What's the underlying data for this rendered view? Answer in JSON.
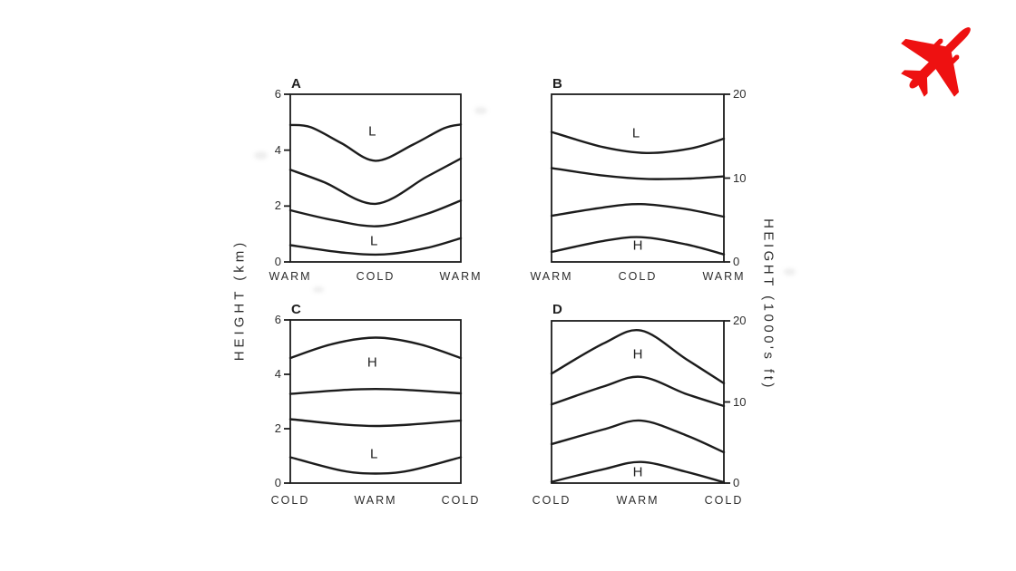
{
  "figure": {
    "left_axis_title": "HEIGHT (km)",
    "right_axis_title": "HEIGHT (1000's ft)",
    "ink_color": "#1c1c1c",
    "text_color": "#2d2d2d",
    "background": "#ffffff",
    "plane_icon": {
      "name": "airplane-icon",
      "color": "#ee1111",
      "rotation_deg": 45
    }
  },
  "chart_data": [
    {
      "type": "line",
      "panel": "A",
      "axis_side": "left",
      "ylabel": "HEIGHT (km)",
      "ylim": [
        0,
        6
      ],
      "yticks": [
        0,
        2,
        4,
        6
      ],
      "x_categories": [
        "WARM",
        "COLD",
        "WARM"
      ],
      "pressure_labels": [
        {
          "text": "L",
          "x": 0.48,
          "y": 4.67
        },
        {
          "text": "L",
          "x": 0.49,
          "y": 0.73
        }
      ],
      "series": [
        {
          "name": "pressure-surface-1",
          "points": [
            [
              0,
              4.9
            ],
            [
              0.12,
              4.82
            ],
            [
              0.3,
              4.25
            ],
            [
              0.5,
              3.62
            ],
            [
              0.72,
              4.2
            ],
            [
              0.9,
              4.78
            ],
            [
              1,
              4.92
            ]
          ]
        },
        {
          "name": "pressure-surface-2",
          "points": [
            [
              0,
              3.3
            ],
            [
              0.2,
              2.85
            ],
            [
              0.5,
              2.08
            ],
            [
              0.8,
              3.05
            ],
            [
              1,
              3.7
            ]
          ]
        },
        {
          "name": "pressure-surface-3",
          "points": [
            [
              0,
              1.85
            ],
            [
              0.25,
              1.5
            ],
            [
              0.52,
              1.28
            ],
            [
              0.8,
              1.72
            ],
            [
              1,
              2.2
            ]
          ]
        },
        {
          "name": "pressure-surface-4",
          "points": [
            [
              0,
              0.6
            ],
            [
              0.3,
              0.34
            ],
            [
              0.55,
              0.27
            ],
            [
              0.8,
              0.5
            ],
            [
              1,
              0.85
            ]
          ]
        }
      ]
    },
    {
      "type": "line",
      "panel": "B",
      "axis_side": "right",
      "ylabel": "HEIGHT (1000's ft)",
      "ylim": [
        0,
        20
      ],
      "yticks": [
        0,
        10,
        20
      ],
      "x_categories": [
        "WARM",
        "COLD",
        "WARM"
      ],
      "pressure_labels": [
        {
          "text": "L",
          "x": 0.49,
          "y": 15.35
        },
        {
          "text": "H",
          "x": 0.5,
          "y": 1.95
        }
      ],
      "series": [
        {
          "name": "pressure-surface-1",
          "points": [
            [
              0,
              15.5
            ],
            [
              0.3,
              13.7
            ],
            [
              0.55,
              13.0
            ],
            [
              0.8,
              13.5
            ],
            [
              1,
              14.7
            ]
          ]
        },
        {
          "name": "pressure-surface-2",
          "points": [
            [
              0,
              11.2
            ],
            [
              0.3,
              10.3
            ],
            [
              0.55,
              9.9
            ],
            [
              0.8,
              9.95
            ],
            [
              1,
              10.2
            ]
          ]
        },
        {
          "name": "pressure-surface-3",
          "points": [
            [
              0,
              5.5
            ],
            [
              0.3,
              6.5
            ],
            [
              0.52,
              6.9
            ],
            [
              0.78,
              6.3
            ],
            [
              1,
              5.4
            ]
          ]
        },
        {
          "name": "pressure-surface-4",
          "points": [
            [
              0,
              1.2
            ],
            [
              0.3,
              2.5
            ],
            [
              0.52,
              2.95
            ],
            [
              0.78,
              2.1
            ],
            [
              1,
              0.9
            ]
          ]
        }
      ]
    },
    {
      "type": "line",
      "panel": "C",
      "axis_side": "left",
      "ylabel": "HEIGHT (km)",
      "ylim": [
        0,
        6
      ],
      "yticks": [
        0,
        2,
        4,
        6
      ],
      "x_categories": [
        "COLD",
        "WARM",
        "COLD"
      ],
      "pressure_labels": [
        {
          "text": "H",
          "x": 0.48,
          "y": 4.42
        },
        {
          "text": "L",
          "x": 0.49,
          "y": 1.07
        }
      ],
      "series": [
        {
          "name": "pressure-surface-1",
          "points": [
            [
              0,
              4.6
            ],
            [
              0.25,
              5.12
            ],
            [
              0.5,
              5.35
            ],
            [
              0.75,
              5.12
            ],
            [
              1,
              4.6
            ]
          ]
        },
        {
          "name": "pressure-surface-2",
          "points": [
            [
              0,
              3.28
            ],
            [
              0.3,
              3.42
            ],
            [
              0.5,
              3.46
            ],
            [
              0.7,
              3.42
            ],
            [
              1,
              3.3
            ]
          ]
        },
        {
          "name": "pressure-surface-3",
          "points": [
            [
              0,
              2.35
            ],
            [
              0.3,
              2.16
            ],
            [
              0.5,
              2.1
            ],
            [
              0.7,
              2.15
            ],
            [
              1,
              2.3
            ]
          ]
        },
        {
          "name": "pressure-surface-4",
          "points": [
            [
              0,
              0.95
            ],
            [
              0.3,
              0.46
            ],
            [
              0.5,
              0.35
            ],
            [
              0.7,
              0.46
            ],
            [
              1,
              0.95
            ]
          ]
        }
      ]
    },
    {
      "type": "line",
      "panel": "D",
      "axis_side": "right",
      "ylabel": "HEIGHT (1000's ft)",
      "ylim": [
        0,
        20
      ],
      "yticks": [
        0,
        10,
        20
      ],
      "x_categories": [
        "COLD",
        "WARM",
        "COLD"
      ],
      "pressure_labels": [
        {
          "text": "H",
          "x": 0.5,
          "y": 15.9
        },
        {
          "text": "H",
          "x": 0.5,
          "y": 1.35
        }
      ],
      "series": [
        {
          "name": "pressure-surface-1",
          "points": [
            [
              0,
              13.5
            ],
            [
              0.3,
              17.2
            ],
            [
              0.52,
              18.8
            ],
            [
              0.78,
              15.3
            ],
            [
              1,
              12.3
            ]
          ]
        },
        {
          "name": "pressure-surface-2",
          "points": [
            [
              0,
              9.7
            ],
            [
              0.3,
              11.9
            ],
            [
              0.52,
              13.1
            ],
            [
              0.78,
              11.0
            ],
            [
              1,
              9.5
            ]
          ]
        },
        {
          "name": "pressure-surface-3",
          "points": [
            [
              0,
              4.8
            ],
            [
              0.3,
              6.6
            ],
            [
              0.52,
              7.7
            ],
            [
              0.78,
              5.9
            ],
            [
              1,
              3.8
            ]
          ]
        },
        {
          "name": "pressure-surface-4",
          "points": [
            [
              0,
              0.15
            ],
            [
              0.3,
              1.7
            ],
            [
              0.52,
              2.6
            ],
            [
              0.78,
              1.4
            ],
            [
              1,
              0.1
            ]
          ]
        }
      ]
    }
  ]
}
